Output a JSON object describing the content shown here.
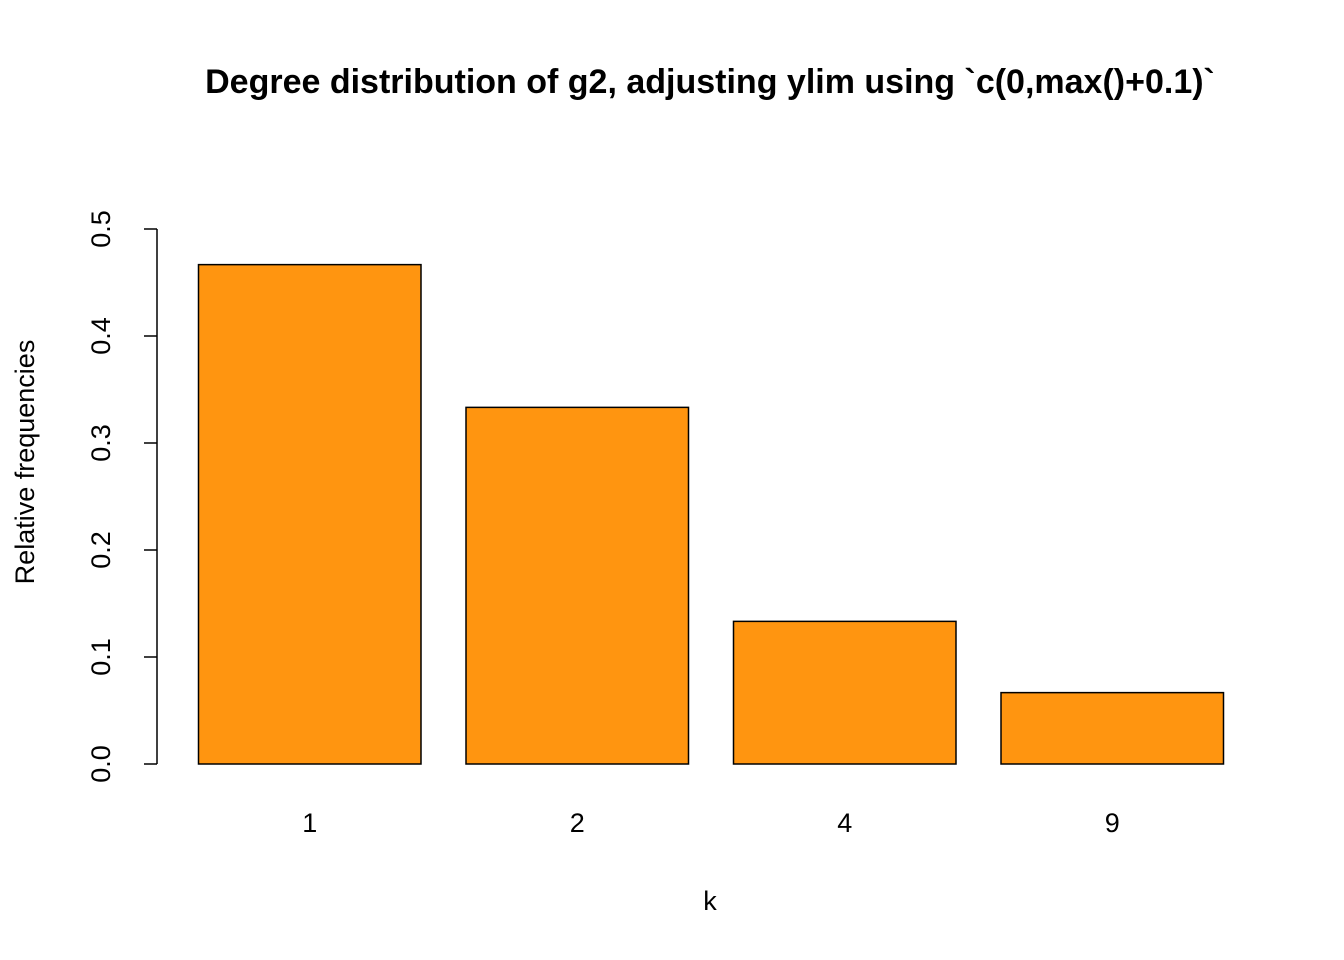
{
  "chart_data": {
    "type": "bar",
    "title": "Degree distribution of g2, adjusting ylim using `c(0,max()+0.1)`",
    "xlabel": "k",
    "ylabel": "Relative frequencies",
    "categories": [
      "1",
      "2",
      "4",
      "9"
    ],
    "values": [
      0.4667,
      0.3333,
      0.1333,
      0.0667
    ],
    "ylim": [
      0,
      0.5
    ],
    "yticks": [
      "0.0",
      "0.1",
      "0.2",
      "0.3",
      "0.4",
      "0.5"
    ],
    "bar_color": "#ff9510",
    "bar_border_color": "#000000",
    "grid": false,
    "legend": "none"
  }
}
